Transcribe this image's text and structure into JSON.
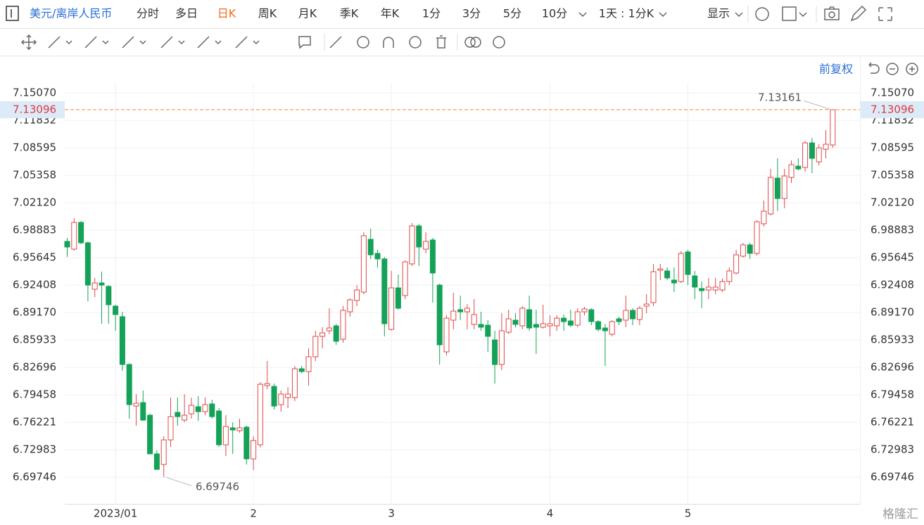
{
  "toolbar": {
    "symbol": "美元/离岸人民币",
    "periods": [
      {
        "label": "分时",
        "active": false
      },
      {
        "label": "多日",
        "active": false
      },
      {
        "label": "日K",
        "active": true
      },
      {
        "label": "周K",
        "active": false
      },
      {
        "label": "月K",
        "active": false
      },
      {
        "label": "季K",
        "active": false
      },
      {
        "label": "年K",
        "active": false
      },
      {
        "label": "1分",
        "active": false
      },
      {
        "label": "3分",
        "active": false
      },
      {
        "label": "5分",
        "active": false
      },
      {
        "label": "10分",
        "active": false
      }
    ],
    "interval": "1天 : 1分K",
    "display": "显示",
    "adjustment": "前复权"
  },
  "watermark": "格隆汇",
  "chart_data": {
    "type": "candlestick",
    "categories": [
      null,
      null,
      null,
      null,
      null,
      null,
      null,
      "2023/01",
      null,
      null,
      null,
      null,
      null,
      null,
      null,
      null,
      null,
      null,
      null,
      null,
      null,
      null,
      null,
      null,
      null,
      null,
      null,
      "2",
      null,
      null,
      null,
      null,
      null,
      null,
      null,
      null,
      null,
      null,
      null,
      null,
      null,
      null,
      null,
      null,
      null,
      null,
      null,
      "3",
      null,
      null,
      null,
      null,
      null,
      null,
      null,
      null,
      null,
      null,
      null,
      null,
      null,
      null,
      null,
      null,
      null,
      null,
      null,
      null,
      null,
      null,
      "4",
      null,
      null,
      null,
      null,
      null,
      null,
      null,
      null,
      null,
      null,
      null,
      null,
      null,
      null,
      null,
      null,
      null,
      null,
      null,
      "5",
      null,
      null,
      null,
      null,
      null,
      null,
      null,
      null,
      null,
      null,
      null,
      null,
      null,
      null,
      null,
      null,
      null,
      null,
      null,
      null,
      null
    ],
    "open": [
      6.9756,
      6.9665,
      6.998,
      6.974,
      6.9192,
      6.9266,
      6.9225,
      6.8993,
      6.8868,
      6.8304,
      6.7814,
      6.7855,
      6.7706,
      6.725,
      6.7125,
      6.7415,
      6.7739,
      6.7648,
      6.7723,
      6.7806,
      6.7748,
      6.7839,
      6.7756,
      6.7357,
      6.7557,
      6.7523,
      6.7565,
      6.7191,
      6.7357,
      6.8055,
      6.8046,
      6.7831,
      6.7914,
      6.7914,
      6.8254,
      6.8221,
      6.8395,
      6.8636,
      6.8702,
      6.876,
      6.8602,
      6.8926,
      6.9059,
      6.9158,
      6.9781,
      6.9615,
      6.9549,
      6.8719,
      6.9208,
      6.9117,
      6.9491,
      6.9939,
      6.9665,
      6.9773,
      6.9241,
      6.8453,
      6.8827,
      6.8951,
      6.8926,
      6.8777,
      6.8777,
      6.8768,
      6.8594,
      6.8304,
      6.8685,
      6.8827,
      6.876,
      6.8951,
      6.8777,
      6.8744,
      6.876,
      6.876,
      6.8851,
      6.8818,
      6.8768,
      6.8926,
      6.8951,
      6.881,
      6.8735,
      6.8661,
      6.8843,
      6.8827,
      6.8943,
      6.8835,
      6.8993,
      6.9034,
      6.9416,
      6.9408,
      6.93,
      6.9283,
      6.9632,
      6.9349,
      6.92,
      6.9183,
      6.9183,
      6.9183,
      6.9283,
      6.9383,
      6.9582,
      6.9715,
      6.9615,
      6.9964,
      7.008,
      7.0503,
      7.0262,
      7.0511,
      7.0644,
      7.0628,
      7.0918,
      7.0694,
      7.0843,
      7.0893
    ],
    "high": [
      6.9798,
      7.003,
      6.9997,
      6.9756,
      6.9325,
      6.9399,
      6.9241,
      6.9009,
      6.8926,
      6.832,
      6.7955,
      6.7997,
      6.7723,
      6.7291,
      6.7457,
      6.7914,
      6.7914,
      6.7955,
      6.7914,
      6.793,
      6.7914,
      6.7889,
      6.7789,
      6.7706,
      6.7623,
      6.7665,
      6.7582,
      6.7457,
      6.8096,
      6.8345,
      6.8079,
      6.7997,
      6.8038,
      6.8287,
      6.8287,
      6.8495,
      6.8702,
      6.8744,
      6.8968,
      6.8785,
      6.8993,
      6.9084,
      6.9241,
      6.9864,
      6.9906,
      6.9657,
      6.9574,
      6.9408,
      6.9366,
      6.9532,
      6.9972,
      6.9964,
      6.9864,
      6.9798,
      6.9258,
      6.8885,
      6.915,
      6.9117,
      6.9017,
      6.9076,
      6.8926,
      6.8827,
      6.8702,
      6.891,
      6.8951,
      6.891,
      6.8993,
      6.9117,
      6.8951,
      6.9009,
      6.8885,
      6.8885,
      6.8893,
      6.8951,
      6.8968,
      6.8984,
      6.8968,
      6.8827,
      6.8785,
      6.8827,
      6.8868,
      6.9117,
      6.8968,
      6.8993,
      6.9134,
      6.9491,
      6.9491,
      6.9449,
      6.9449,
      6.964,
      6.9657,
      6.9408,
      6.9283,
      6.9325,
      6.9325,
      6.9316,
      6.9449,
      6.9657,
      6.974,
      6.974,
      7.0005,
      7.0238,
      7.0611,
      7.0736,
      7.0611,
      7.0711,
      7.0736,
      7.0943,
      7.0976,
      7.0902,
      7.1068,
      7.13161
    ],
    "low": [
      6.9574,
      6.9648,
      6.9723,
      6.9051,
      6.91,
      6.8785,
      6.8785,
      6.8702,
      6.8229,
      6.7665,
      6.7582,
      6.764,
      6.725,
      6.7059,
      6.69746,
      6.7332,
      6.7582,
      6.7623,
      6.7665,
      6.764,
      6.7706,
      6.7665,
      6.7332,
      6.7225,
      6.725,
      6.7499,
      6.7125,
      6.7059,
      6.7324,
      6.8013,
      6.7772,
      6.7748,
      6.7789,
      6.7872,
      6.8204,
      6.8055,
      6.8345,
      6.8495,
      6.8661,
      6.8536,
      6.8561,
      6.8868,
      6.8993,
      6.9134,
      6.9549,
      6.9449,
      6.8636,
      6.8702,
      6.8951,
      6.9076,
      6.9466,
      6.9466,
      6.9615,
      6.9034,
      6.8304,
      6.8412,
      6.8719,
      6.8827,
      6.8719,
      6.8719,
      6.8702,
      6.8453,
      6.8079,
      6.8237,
      6.8661,
      6.8744,
      6.8719,
      6.8702,
      6.8428,
      6.8727,
      6.8636,
      6.8702,
      6.8702,
      6.8744,
      6.8744,
      6.8885,
      6.8768,
      6.8694,
      6.8287,
      6.8636,
      6.8768,
      6.8744,
      6.8768,
      6.8768,
      6.891,
      6.8993,
      6.93,
      6.93,
      6.9158,
      6.9266,
      6.9241,
      6.9076,
      6.8968,
      6.9076,
      6.9134,
      6.9158,
      6.9241,
      6.9366,
      6.9565,
      6.9549,
      6.959,
      6.993,
      7.0063,
      7.0113,
      7.0146,
      7.0445,
      7.0594,
      7.0578,
      7.0561,
      7.0653,
      7.0736,
      7.086
    ],
    "close": [
      6.969,
      6.998,
      6.974,
      6.9241,
      6.9266,
      6.9241,
      6.9009,
      6.8893,
      6.8304,
      6.7831,
      6.7847,
      6.7648,
      6.725,
      6.7067,
      6.7415,
      6.7689,
      6.7689,
      6.7706,
      6.7822,
      6.7748,
      6.7831,
      6.7689,
      6.7357,
      6.7573,
      6.7532,
      6.7557,
      6.7191,
      6.7407,
      6.8071,
      6.8079,
      6.7814,
      6.7955,
      6.7955,
      6.8254,
      6.8221,
      6.8395,
      6.8636,
      6.8677,
      6.8735,
      6.8578,
      6.8943,
      6.9067,
      6.9183,
      6.9823,
      6.9598,
      6.9549,
      6.8785,
      6.9208,
      6.8968,
      6.9515,
      6.9939,
      6.969,
      6.9756,
      6.9383,
      6.8536,
      6.8851,
      6.8934,
      6.8926,
      6.8968,
      6.8893,
      6.8744,
      6.8636,
      6.8304,
      6.8702,
      6.8843,
      6.8777,
      6.8968,
      6.8735,
      6.8744,
      6.8785,
      6.8785,
      6.8851,
      6.881,
      6.8768,
      6.8926,
      6.8959,
      6.881,
      6.8719,
      6.8702,
      6.881,
      6.881,
      6.8943,
      6.8843,
      6.8968,
      6.9017,
      6.9399,
      6.9432,
      6.9325,
      6.9266,
      6.9615,
      6.9366,
      6.9217,
      6.9175,
      6.9217,
      6.9217,
      6.9283,
      6.9408,
      6.9598,
      6.9715,
      6.9615,
      6.9988,
      7.0113,
      7.0511,
      7.0262,
      7.0528,
      7.0661,
      7.0611,
      7.0918,
      7.0736,
      7.086,
      7.0902,
      7.13096
    ],
    "up_color": "#e04848",
    "down_color": "#13a257",
    "last_price_color": "#f0883a",
    "ylim": [
      6.666,
      7.1624
    ],
    "yticks": [
      {
        "value": 7.1507,
        "label": "7.15070"
      },
      7.11832,
      7.08595,
      7.05358,
      {
        "value": 7.0212,
        "label": "7.02120"
      },
      6.98883,
      6.95645,
      6.92408,
      {
        "value": 6.8917,
        "label": "6.89170"
      },
      6.85933,
      6.82696,
      6.79458,
      6.76221,
      6.72983,
      6.69746
    ],
    "grid": true
  }
}
